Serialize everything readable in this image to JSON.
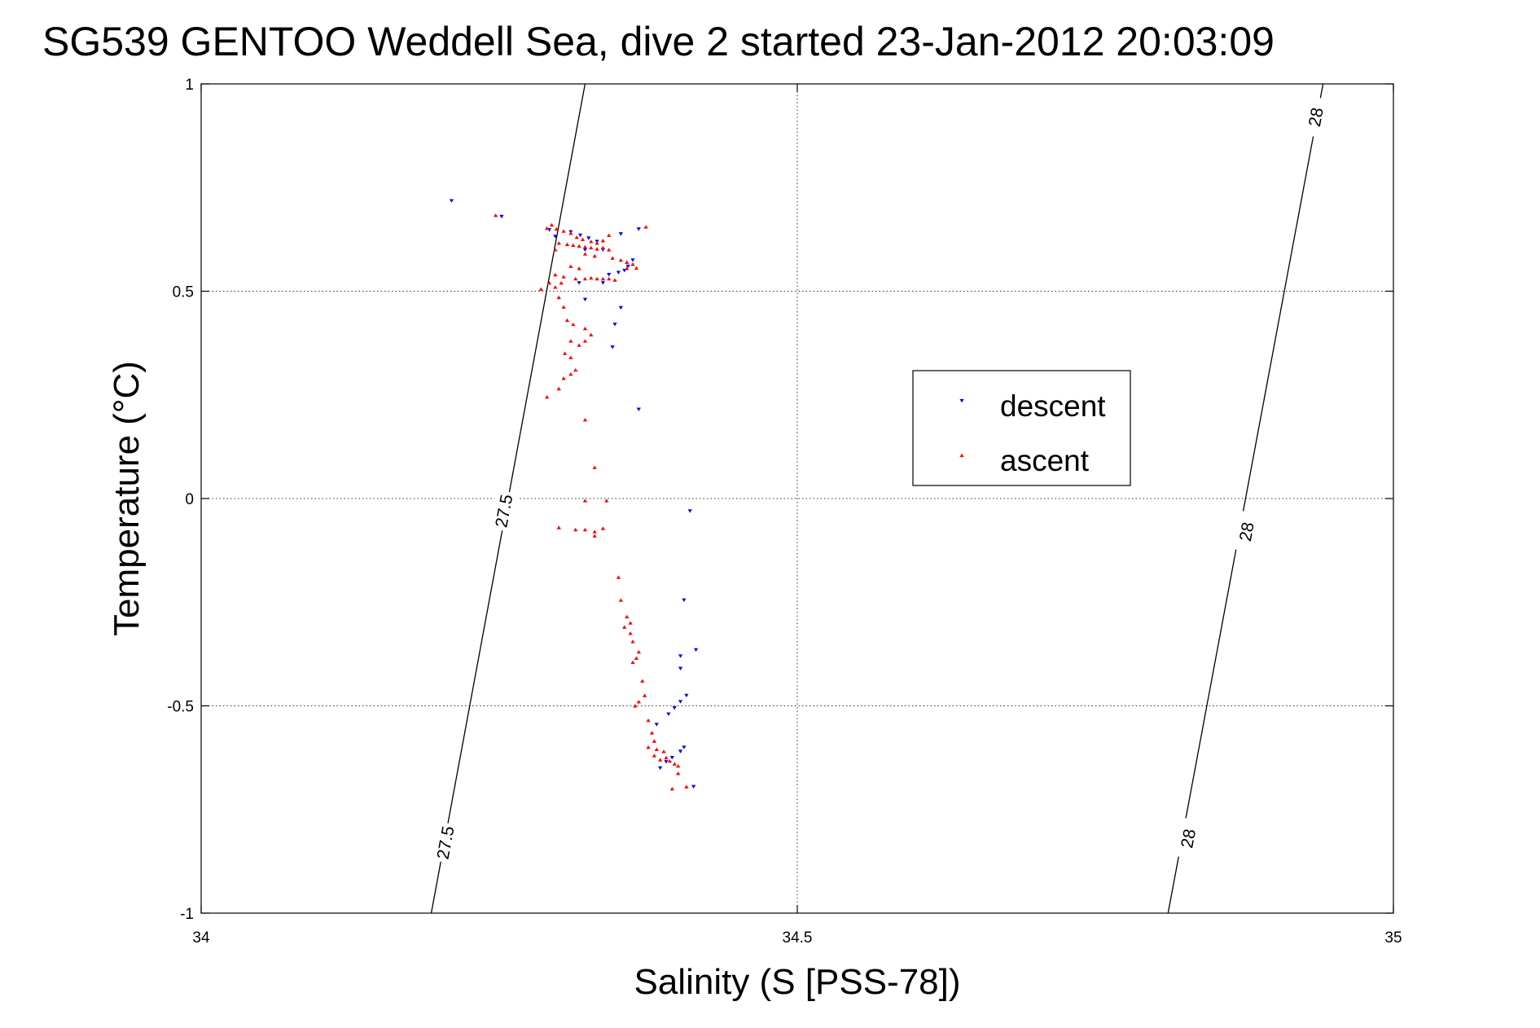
{
  "chart_data": {
    "type": "scatter",
    "title": "SG539 GENTOO Weddell Sea, dive 2 started 23-Jan-2012 20:03:09",
    "xlabel": "Salinity (S [PSS-78])",
    "ylabel": "Temperature (°C)",
    "xlim": [
      34,
      35
    ],
    "ylim": [
      -1,
      1
    ],
    "xticks": [
      {
        "value": 34,
        "label": "34"
      },
      {
        "value": 34.5,
        "label": "34.5"
      },
      {
        "value": 35,
        "label": "35"
      }
    ],
    "yticks": [
      {
        "value": -1,
        "label": "-1"
      },
      {
        "value": -0.5,
        "label": "-0.5"
      },
      {
        "value": 0,
        "label": "0"
      },
      {
        "value": 0.5,
        "label": "0.5"
      },
      {
        "value": 1,
        "label": "1"
      }
    ],
    "grid": true,
    "legend": {
      "placement": "center-right"
    },
    "contours": [
      {
        "level": "27.5",
        "points": [
          [
            34.193,
            -1.0
          ],
          [
            34.322,
            1.0
          ]
        ],
        "labels": [
          [
            34.205,
            -0.83
          ],
          [
            34.254,
            -0.03
          ]
        ]
      },
      {
        "level": "28",
        "points": [
          [
            34.811,
            -1.0
          ],
          [
            34.941,
            1.0
          ]
        ],
        "labels": [
          [
            34.828,
            -0.82
          ],
          [
            34.877,
            -0.08
          ],
          [
            34.935,
            0.92
          ]
        ]
      }
    ],
    "series": [
      {
        "name": "descent",
        "color": "#0000ff",
        "marker": "triangle-down",
        "points": [
          [
            34.21,
            0.718
          ],
          [
            34.252,
            0.68
          ],
          [
            34.292,
            0.648
          ],
          [
            34.31,
            0.643
          ],
          [
            34.318,
            0.635
          ],
          [
            34.325,
            0.628
          ],
          [
            34.332,
            0.62
          ],
          [
            34.297,
            0.632
          ],
          [
            34.322,
            0.6
          ],
          [
            34.337,
            0.6
          ],
          [
            34.352,
            0.638
          ],
          [
            34.367,
            0.65
          ],
          [
            34.362,
            0.575
          ],
          [
            34.358,
            0.56
          ],
          [
            34.355,
            0.55
          ],
          [
            34.35,
            0.545
          ],
          [
            34.342,
            0.54
          ],
          [
            34.317,
            0.52
          ],
          [
            34.322,
            0.48
          ],
          [
            34.337,
            0.52
          ],
          [
            34.352,
            0.46
          ],
          [
            34.347,
            0.42
          ],
          [
            34.345,
            0.365
          ],
          [
            34.367,
            0.215
          ],
          [
            34.41,
            -0.03
          ],
          [
            34.405,
            -0.245
          ],
          [
            34.415,
            -0.365
          ],
          [
            34.402,
            -0.38
          ],
          [
            34.402,
            -0.41
          ],
          [
            34.407,
            -0.475
          ],
          [
            34.402,
            -0.49
          ],
          [
            34.397,
            -0.505
          ],
          [
            34.392,
            -0.52
          ],
          [
            34.382,
            -0.545
          ],
          [
            34.405,
            -0.6
          ],
          [
            34.402,
            -0.61
          ],
          [
            34.395,
            -0.625
          ],
          [
            34.39,
            -0.635
          ],
          [
            34.385,
            -0.65
          ],
          [
            34.413,
            -0.695
          ]
        ]
      },
      {
        "name": "ascent",
        "color": "#ff0000",
        "marker": "triangle-up",
        "points": [
          [
            34.247,
            0.683
          ],
          [
            34.29,
            0.652
          ],
          [
            34.294,
            0.66
          ],
          [
            34.298,
            0.65
          ],
          [
            34.304,
            0.645
          ],
          [
            34.31,
            0.64
          ],
          [
            34.315,
            0.63
          ],
          [
            34.32,
            0.625
          ],
          [
            34.327,
            0.62
          ],
          [
            34.332,
            0.616
          ],
          [
            34.337,
            0.622
          ],
          [
            34.342,
            0.635
          ],
          [
            34.373,
            0.655
          ],
          [
            34.297,
            0.6
          ],
          [
            34.3,
            0.616
          ],
          [
            34.307,
            0.613
          ],
          [
            34.312,
            0.611
          ],
          [
            34.317,
            0.609
          ],
          [
            34.322,
            0.607
          ],
          [
            34.327,
            0.605
          ],
          [
            34.332,
            0.602
          ],
          [
            34.337,
            0.605
          ],
          [
            34.342,
            0.6
          ],
          [
            34.322,
            0.59
          ],
          [
            34.33,
            0.585
          ],
          [
            34.345,
            0.58
          ],
          [
            34.352,
            0.575
          ],
          [
            34.357,
            0.57
          ],
          [
            34.362,
            0.565
          ],
          [
            34.357,
            0.555
          ],
          [
            34.365,
            0.556
          ],
          [
            34.31,
            0.56
          ],
          [
            34.317,
            0.555
          ],
          [
            34.297,
            0.54
          ],
          [
            34.304,
            0.535
          ],
          [
            34.314,
            0.53
          ],
          [
            34.322,
            0.53
          ],
          [
            34.327,
            0.532
          ],
          [
            34.332,
            0.53
          ],
          [
            34.337,
            0.53
          ],
          [
            34.342,
            0.53
          ],
          [
            34.347,
            0.527
          ],
          [
            34.292,
            0.52
          ],
          [
            34.302,
            0.52
          ],
          [
            34.297,
            0.51
          ],
          [
            34.285,
            0.505
          ],
          [
            34.3,
            0.485
          ],
          [
            34.304,
            0.462
          ],
          [
            34.307,
            0.43
          ],
          [
            34.312,
            0.42
          ],
          [
            34.322,
            0.41
          ],
          [
            34.327,
            0.395
          ],
          [
            34.31,
            0.38
          ],
          [
            34.317,
            0.37
          ],
          [
            34.322,
            0.38
          ],
          [
            34.305,
            0.35
          ],
          [
            34.31,
            0.34
          ],
          [
            34.314,
            0.31
          ],
          [
            34.31,
            0.3
          ],
          [
            34.304,
            0.29
          ],
          [
            34.3,
            0.265
          ],
          [
            34.29,
            0.245
          ],
          [
            34.322,
            0.19
          ],
          [
            34.33,
            0.075
          ],
          [
            34.322,
            -0.005
          ],
          [
            34.34,
            -0.005
          ],
          [
            34.3,
            -0.07
          ],
          [
            34.314,
            -0.075
          ],
          [
            34.322,
            -0.075
          ],
          [
            34.33,
            -0.08
          ],
          [
            34.337,
            -0.072
          ],
          [
            34.33,
            -0.09
          ],
          [
            34.35,
            -0.19
          ],
          [
            34.352,
            -0.245
          ],
          [
            34.357,
            -0.285
          ],
          [
            34.36,
            -0.3
          ],
          [
            34.355,
            -0.31
          ],
          [
            34.36,
            -0.325
          ],
          [
            34.362,
            -0.345
          ],
          [
            34.367,
            -0.37
          ],
          [
            34.365,
            -0.385
          ],
          [
            34.362,
            -0.395
          ],
          [
            34.37,
            -0.44
          ],
          [
            34.372,
            -0.475
          ],
          [
            34.367,
            -0.49
          ],
          [
            34.364,
            -0.5
          ],
          [
            34.375,
            -0.535
          ],
          [
            34.378,
            -0.565
          ],
          [
            34.38,
            -0.585
          ],
          [
            34.375,
            -0.6
          ],
          [
            34.382,
            -0.605
          ],
          [
            34.388,
            -0.61
          ],
          [
            34.38,
            -0.62
          ],
          [
            34.385,
            -0.63
          ],
          [
            34.39,
            -0.625
          ],
          [
            34.393,
            -0.633
          ],
          [
            34.397,
            -0.64
          ],
          [
            34.4,
            -0.645
          ],
          [
            34.4,
            -0.663
          ],
          [
            34.395,
            -0.7
          ],
          [
            34.407,
            -0.695
          ]
        ]
      }
    ]
  }
}
